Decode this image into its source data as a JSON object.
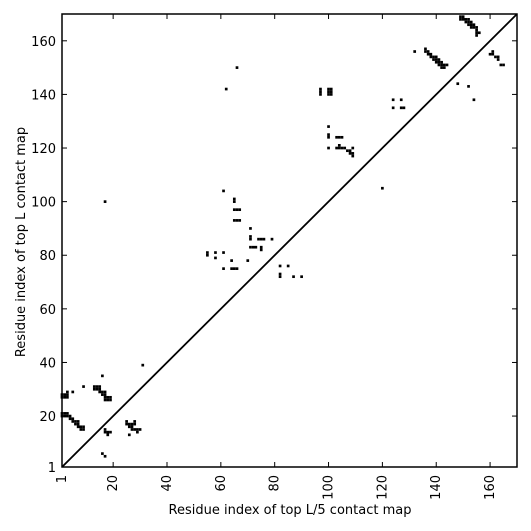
{
  "chart_data": {
    "type": "heatmap",
    "title": "",
    "xlabel": "Residue index of top L/5 contact map",
    "ylabel": "Residue index of top L contact map",
    "xlim": [
      1,
      170
    ],
    "ylim": [
      1,
      170
    ],
    "x_ticks": [
      1,
      20,
      40,
      60,
      80,
      100,
      120,
      140,
      160
    ],
    "y_ticks": [
      1,
      20,
      40,
      60,
      80,
      100,
      120,
      140,
      160
    ],
    "diagonal": true,
    "grid": false,
    "color": "#000000",
    "contacts_upper": [
      [
        17,
        100
      ],
      [
        62,
        142
      ],
      [
        66,
        150
      ],
      [
        55,
        80
      ],
      [
        55,
        81
      ],
      [
        58,
        79
      ],
      [
        58,
        81
      ],
      [
        61,
        75
      ],
      [
        61,
        81
      ],
      [
        61,
        104
      ],
      [
        64,
        75
      ],
      [
        64,
        78
      ],
      [
        65,
        75
      ],
      [
        66,
        75
      ],
      [
        65,
        93
      ],
      [
        66,
        93
      ],
      [
        67,
        93
      ],
      [
        65,
        97
      ],
      [
        66,
        97
      ],
      [
        67,
        97
      ],
      [
        65,
        100
      ],
      [
        65,
        101
      ],
      [
        70,
        78
      ],
      [
        71,
        83
      ],
      [
        71,
        86
      ],
      [
        71,
        87
      ],
      [
        71,
        90
      ],
      [
        72,
        83
      ],
      [
        73,
        83
      ],
      [
        74,
        86
      ],
      [
        75,
        82
      ],
      [
        75,
        83
      ],
      [
        75,
        86
      ],
      [
        76,
        86
      ],
      [
        79,
        86
      ],
      [
        82,
        72
      ],
      [
        82,
        73
      ],
      [
        82,
        76
      ],
      [
        85,
        76
      ],
      [
        87,
        72
      ],
      [
        90,
        72
      ],
      [
        97,
        140
      ],
      [
        97,
        141
      ],
      [
        97,
        142
      ],
      [
        100,
        120
      ],
      [
        100,
        124
      ],
      [
        100,
        125
      ],
      [
        100,
        128
      ],
      [
        100,
        140
      ],
      [
        100,
        141
      ],
      [
        100,
        142
      ],
      [
        101,
        140
      ],
      [
        101,
        141
      ],
      [
        101,
        142
      ],
      [
        103,
        120
      ],
      [
        103,
        124
      ],
      [
        104,
        120
      ],
      [
        104,
        121
      ],
      [
        104,
        124
      ],
      [
        105,
        120
      ],
      [
        105,
        124
      ],
      [
        106,
        120
      ],
      [
        107,
        119
      ],
      [
        108,
        118
      ],
      [
        108,
        119
      ],
      [
        109,
        117
      ],
      [
        109,
        118
      ],
      [
        109,
        120
      ],
      [
        120,
        105
      ],
      [
        124,
        135
      ],
      [
        124,
        138
      ],
      [
        127,
        135
      ],
      [
        127,
        138
      ],
      [
        128,
        135
      ],
      [
        132,
        156
      ],
      [
        136,
        156
      ],
      [
        136,
        157
      ],
      [
        137,
        155
      ],
      [
        137,
        156
      ],
      [
        138,
        154
      ],
      [
        138,
        155
      ],
      [
        139,
        153
      ],
      [
        139,
        154
      ],
      [
        140,
        152
      ],
      [
        140,
        153
      ],
      [
        140,
        154
      ],
      [
        141,
        151
      ],
      [
        141,
        152
      ],
      [
        141,
        153
      ],
      [
        142,
        150
      ],
      [
        142,
        151
      ],
      [
        142,
        152
      ],
      [
        143,
        150
      ],
      [
        143,
        151
      ],
      [
        144,
        151
      ],
      [
        148,
        144
      ],
      [
        149,
        168
      ],
      [
        149,
        169
      ],
      [
        150,
        168
      ],
      [
        150,
        169
      ],
      [
        151,
        167
      ],
      [
        151,
        168
      ],
      [
        152,
        166
      ],
      [
        152,
        167
      ],
      [
        152,
        168
      ],
      [
        153,
        165
      ],
      [
        153,
        166
      ],
      [
        153,
        167
      ],
      [
        154,
        138
      ],
      [
        154,
        165
      ],
      [
        154,
        166
      ],
      [
        155,
        162
      ],
      [
        155,
        163
      ],
      [
        155,
        164
      ],
      [
        155,
        165
      ],
      [
        156,
        163
      ],
      [
        152,
        143
      ],
      [
        160,
        155
      ],
      [
        161,
        155
      ],
      [
        161,
        156
      ],
      [
        162,
        154
      ],
      [
        163,
        153
      ],
      [
        163,
        154
      ],
      [
        164,
        151
      ],
      [
        165,
        151
      ]
    ],
    "contacts_lower": [
      [
        1,
        27
      ],
      [
        1,
        28
      ],
      [
        2,
        27
      ],
      [
        2,
        28
      ],
      [
        3,
        27
      ],
      [
        3,
        28
      ],
      [
        3,
        29
      ],
      [
        5,
        29
      ],
      [
        1,
        20
      ],
      [
        1,
        21
      ],
      [
        2,
        20
      ],
      [
        2,
        21
      ],
      [
        3,
        20
      ],
      [
        3,
        21
      ],
      [
        4,
        19
      ],
      [
        4,
        20
      ],
      [
        5,
        18
      ],
      [
        5,
        19
      ],
      [
        6,
        17
      ],
      [
        6,
        18
      ],
      [
        7,
        16
      ],
      [
        7,
        17
      ],
      [
        7,
        18
      ],
      [
        8,
        15
      ],
      [
        8,
        16
      ],
      [
        9,
        15
      ],
      [
        9,
        16
      ],
      [
        9,
        31
      ],
      [
        13,
        30
      ],
      [
        13,
        31
      ],
      [
        14,
        30
      ],
      [
        14,
        31
      ],
      [
        15,
        29
      ],
      [
        15,
        30
      ],
      [
        15,
        31
      ],
      [
        16,
        28
      ],
      [
        16,
        29
      ],
      [
        16,
        35
      ],
      [
        17,
        26
      ],
      [
        17,
        27
      ],
      [
        17,
        28
      ],
      [
        17,
        29
      ],
      [
        18,
        26
      ],
      [
        18,
        27
      ],
      [
        19,
        26
      ],
      [
        19,
        27
      ],
      [
        16,
        6
      ],
      [
        17,
        5
      ],
      [
        17,
        14
      ],
      [
        17,
        15
      ],
      [
        18,
        13
      ],
      [
        18,
        14
      ],
      [
        19,
        14
      ],
      [
        25,
        17
      ],
      [
        25,
        18
      ],
      [
        26,
        16
      ],
      [
        26,
        17
      ],
      [
        27,
        15
      ],
      [
        27,
        16
      ],
      [
        27,
        17
      ],
      [
        28,
        15
      ],
      [
        28,
        17
      ],
      [
        28,
        18
      ],
      [
        29,
        14
      ],
      [
        29,
        15
      ],
      [
        30,
        15
      ],
      [
        31,
        39
      ],
      [
        26,
        13
      ]
    ]
  }
}
